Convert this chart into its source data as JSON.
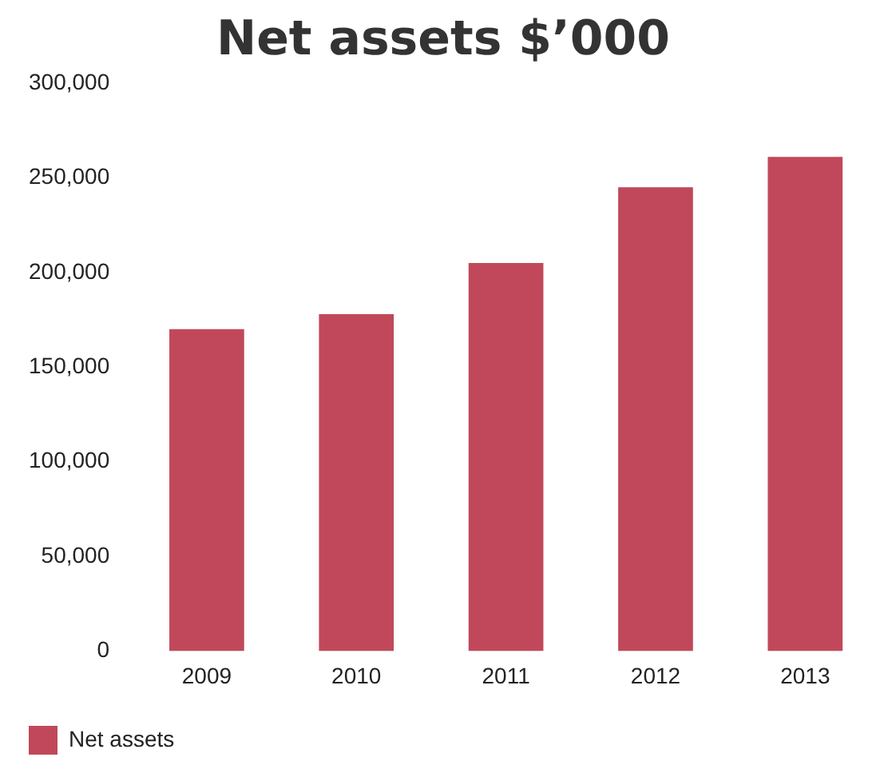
{
  "chart_data": {
    "type": "bar",
    "title": "Net assets $’000",
    "categories": [
      "2009",
      "2010",
      "2011",
      "2012",
      "2013"
    ],
    "series": [
      {
        "name": "Net assets",
        "color": "#c0485a",
        "values": [
          170000,
          178000,
          205000,
          245000,
          261000
        ]
      }
    ],
    "ylim": [
      0,
      300000
    ],
    "yticks": [
      0,
      {
        "value": 50000,
        "label": "50,000"
      },
      {
        "value": 100000,
        "label": "100,000"
      },
      {
        "value": 150000,
        "label": "150,000"
      },
      {
        "value": 200000,
        "label": "200,000"
      },
      {
        "value": 250000,
        "label": "250,000"
      },
      {
        "value": 300000,
        "label": "300,000"
      }
    ],
    "grid": false,
    "legend": "bottom left"
  }
}
